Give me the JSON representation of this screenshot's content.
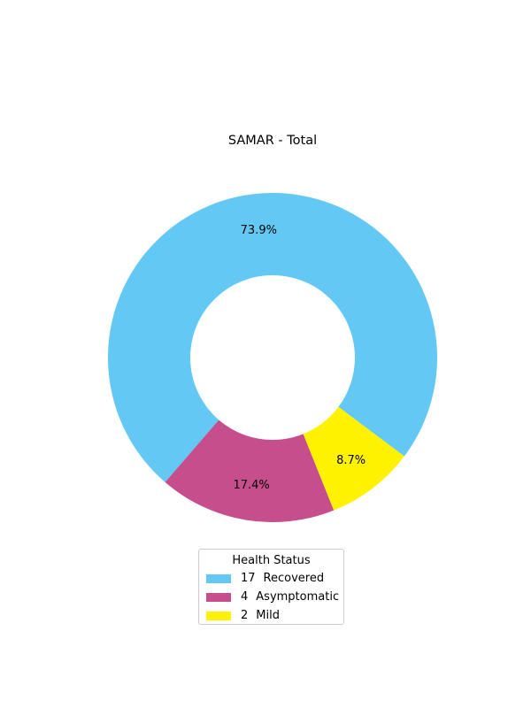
{
  "chart_data": {
    "type": "pie",
    "style": "donut",
    "title": "SAMAR - Total",
    "legend_title": "Health Status",
    "legend_placement": "bottom-center",
    "slices": [
      {
        "label": "Recovered",
        "count": "17",
        "value": 17,
        "percent_label": "73.9%",
        "color": "#63c8f3"
      },
      {
        "label": "Asymptomatic",
        "count": "4",
        "value": 4,
        "percent_label": "17.4%",
        "color": "#c74e8c"
      },
      {
        "label": "Mild",
        "count": "2",
        "value": 2,
        "percent_label": "8.7%",
        "color": "#fff200"
      }
    ]
  }
}
